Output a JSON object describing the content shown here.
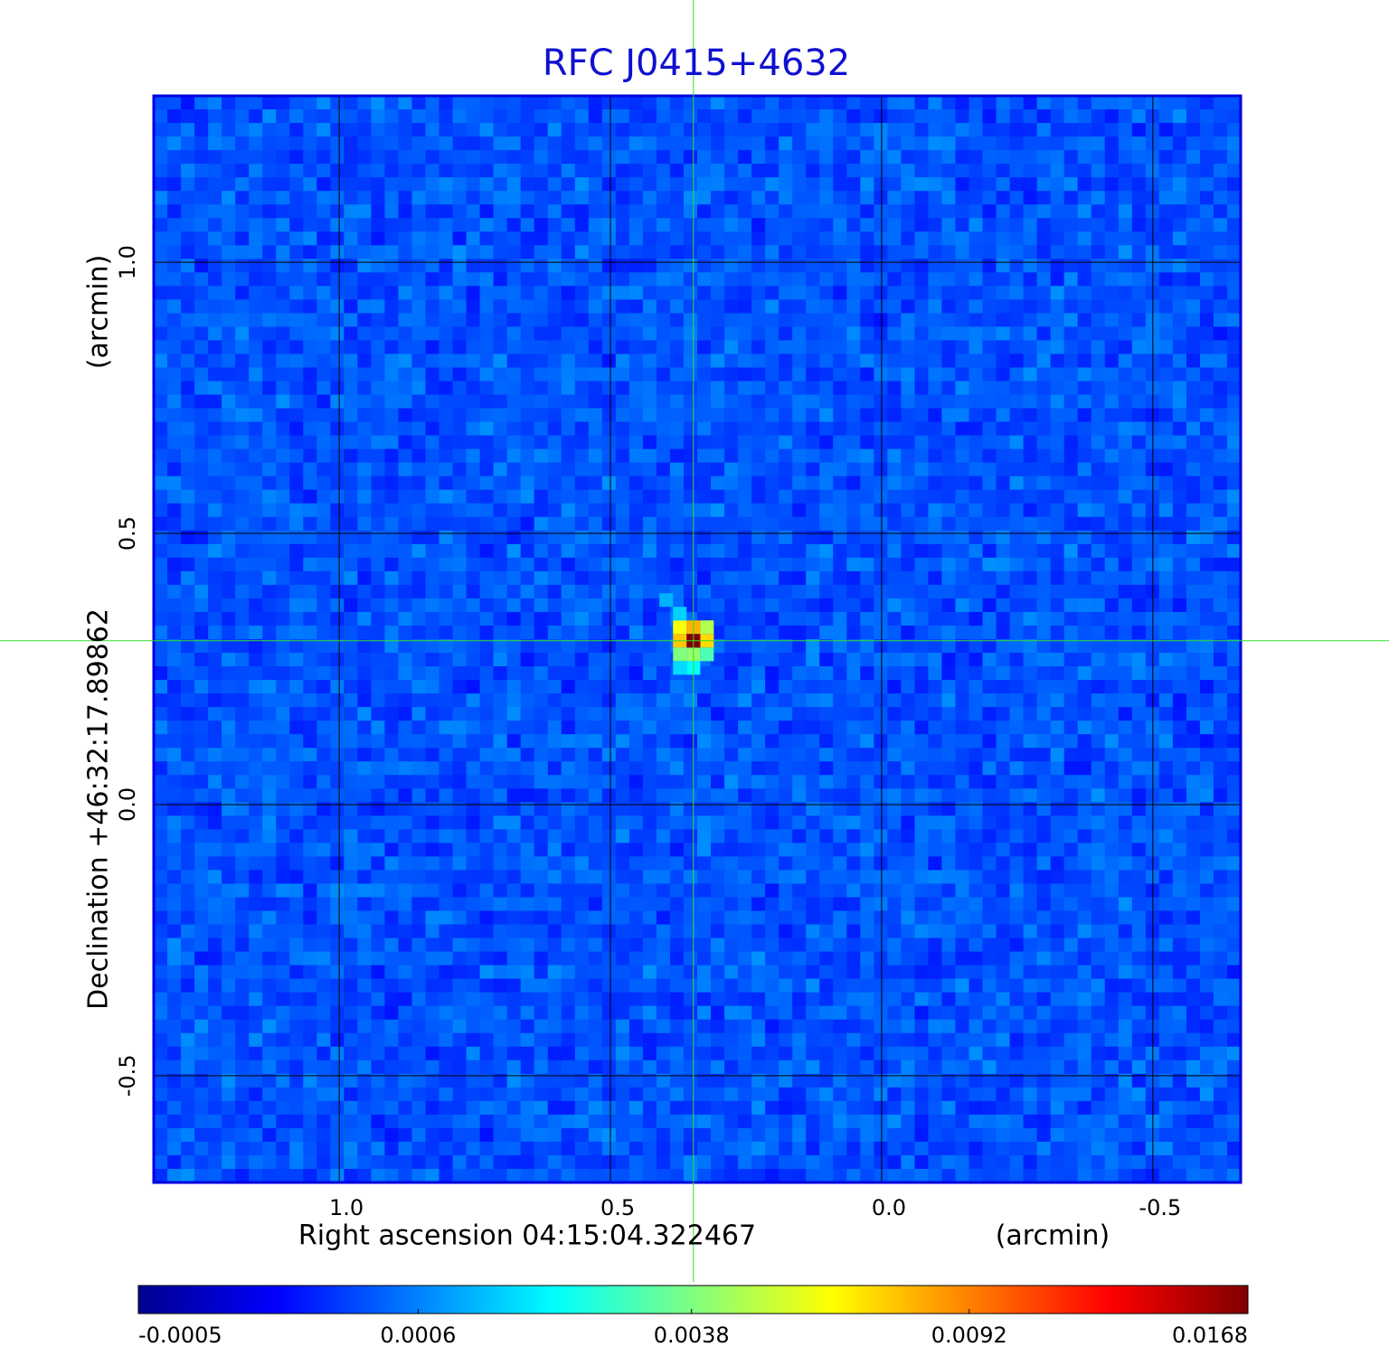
{
  "chart_data": {
    "type": "image",
    "title": "RFC J0415+4632",
    "xlabel": "Right ascension  04:15:04.322467",
    "xunit": "(arcmin)",
    "ylabel": "Declination  +46:32:17.89862",
    "yunit": "(arcmin)",
    "xlim": [
      1.342,
      -0.662
    ],
    "ylim": [
      -0.697,
      1.307
    ],
    "xticks": [
      {
        "value": 1,
        "label": "1.0"
      },
      0.5,
      {
        "value": 0,
        "label": "0.0"
      },
      -0.5
    ],
    "yticks": [
      -0.5,
      {
        "value": 0,
        "label": "0.0"
      },
      0.5,
      {
        "value": 1,
        "label": "1.0"
      }
    ],
    "grid": true,
    "source": {
      "x": 0.347,
      "y": 0.302,
      "peak": 0.0168
    },
    "colorbar": {
      "colormap": "jet",
      "scale": "sqrt",
      "lim": [
        -0.0005,
        0.0168
      ],
      "ticks": [
        -0.0005,
        0.0006,
        0.0038,
        0.0092,
        0.0168
      ]
    }
  }
}
